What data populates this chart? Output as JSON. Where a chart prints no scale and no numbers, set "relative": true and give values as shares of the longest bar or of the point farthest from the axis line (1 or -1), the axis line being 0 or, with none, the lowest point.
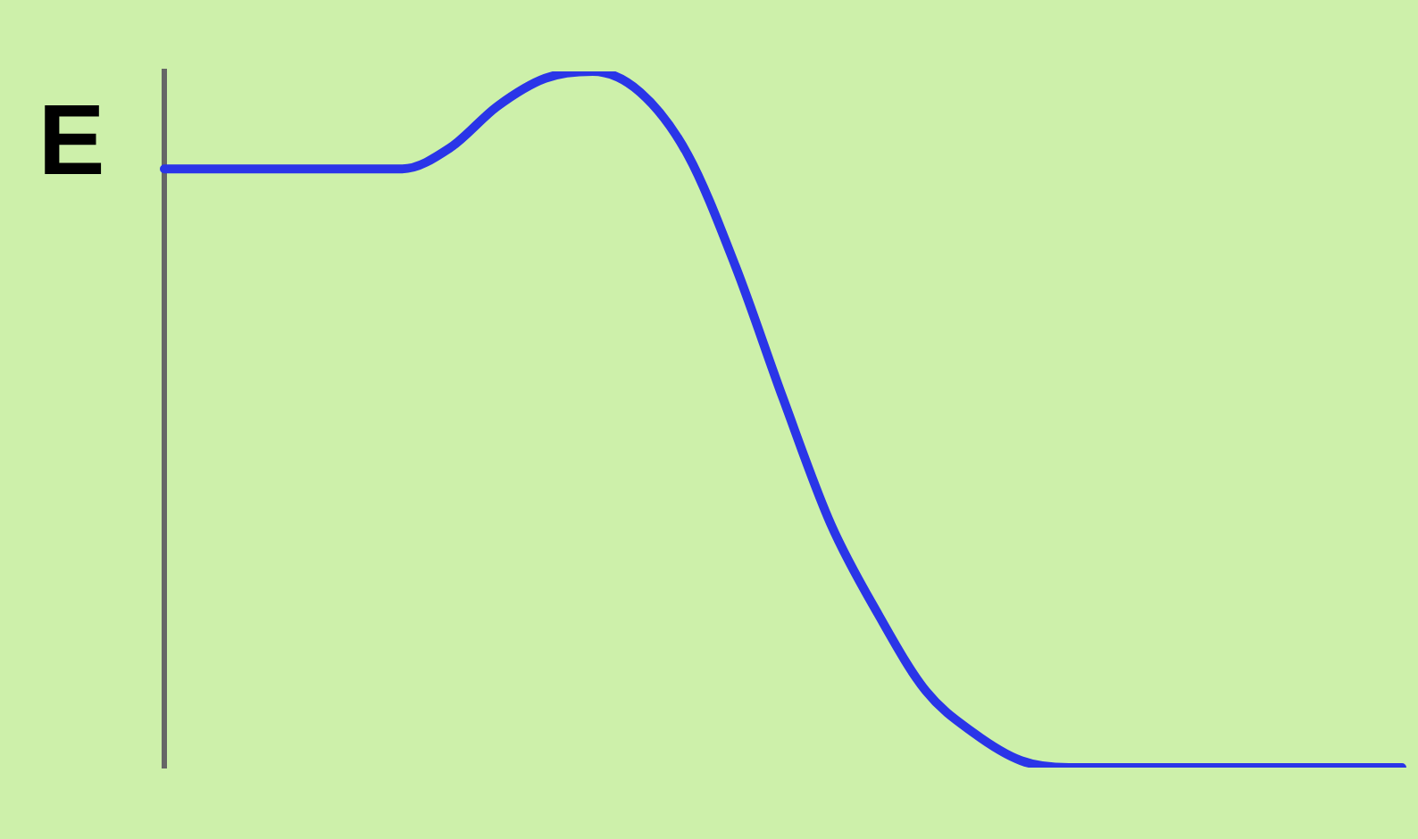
{
  "chart_data": {
    "type": "line",
    "relative": true,
    "ylabel": "E",
    "categories": [
      null,
      null,
      null,
      null,
      null,
      null,
      null,
      null,
      null,
      null,
      null,
      null,
      null,
      null,
      null,
      null,
      null,
      null,
      null,
      null,
      null,
      null,
      null,
      null,
      null,
      null,
      null
    ],
    "series": [
      {
        "color": "#2a35e8",
        "values": [
          0.86,
          0.86,
          0.86,
          0.86,
          0.86,
          0.86,
          0.89,
          0.95,
          0.99,
          1,
          0.97,
          0.88,
          0.72,
          0.53,
          0.35,
          0.22,
          0.11,
          0.05,
          0.01,
          0,
          0,
          0,
          0,
          0,
          0,
          0,
          0
        ]
      }
    ],
    "grid": false,
    "legend": false,
    "marker": "none",
    "line_style": "solid"
  }
}
